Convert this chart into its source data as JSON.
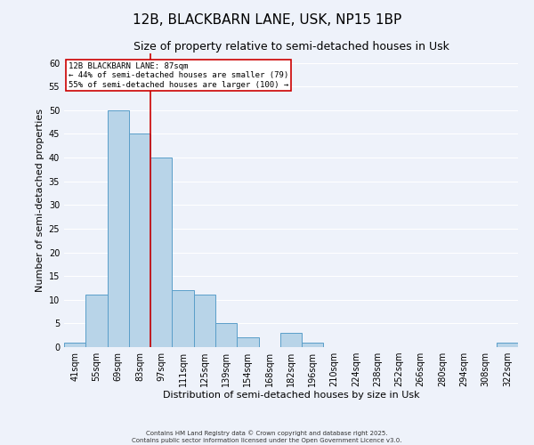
{
  "title": "12B, BLACKBARN LANE, USK, NP15 1BP",
  "subtitle": "Size of property relative to semi-detached houses in Usk",
  "xlabel": "Distribution of semi-detached houses by size in Usk",
  "ylabel": "Number of semi-detached properties",
  "bin_labels": [
    "41sqm",
    "55sqm",
    "69sqm",
    "83sqm",
    "97sqm",
    "111sqm",
    "125sqm",
    "139sqm",
    "154sqm",
    "168sqm",
    "182sqm",
    "196sqm",
    "210sqm",
    "224sqm",
    "238sqm",
    "252sqm",
    "266sqm",
    "280sqm",
    "294sqm",
    "308sqm",
    "322sqm"
  ],
  "bin_values": [
    1,
    11,
    50,
    45,
    40,
    12,
    11,
    5,
    2,
    0,
    3,
    1,
    0,
    0,
    0,
    0,
    0,
    0,
    0,
    0,
    1
  ],
  "bar_color": "#b8d4e8",
  "bar_edge_color": "#5a9ec9",
  "ylim": [
    0,
    62
  ],
  "yticks": [
    0,
    5,
    10,
    15,
    20,
    25,
    30,
    35,
    40,
    45,
    50,
    55,
    60
  ],
  "vline_pos": 3.5,
  "vline_color": "#cc0000",
  "annotation_title": "12B BLACKBARN LANE: 87sqm",
  "annotation_line1": "← 44% of semi-detached houses are smaller (79)",
  "annotation_line2": "55% of semi-detached houses are larger (100) →",
  "annotation_box_color": "#cc0000",
  "footer1": "Contains HM Land Registry data © Crown copyright and database right 2025.",
  "footer2": "Contains public sector information licensed under the Open Government Licence v3.0.",
  "background_color": "#eef2fa",
  "grid_color": "#ffffff",
  "title_fontsize": 11,
  "subtitle_fontsize": 9,
  "axis_label_fontsize": 8,
  "tick_fontsize": 7,
  "footer_fontsize": 5
}
